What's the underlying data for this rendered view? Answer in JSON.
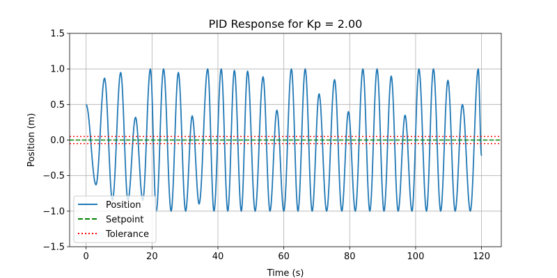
{
  "chart_data": {
    "type": "line",
    "title": "PID Response for Kp = 2.00",
    "xlabel": "Time (s)",
    "ylabel": "Position (m)",
    "xlim": [
      -5,
      126
    ],
    "ylim": [
      -1.5,
      1.5
    ],
    "x_ticks": [
      0,
      20,
      40,
      60,
      80,
      100,
      120
    ],
    "x_tick_labels": [
      "0",
      "20",
      "40",
      "60",
      "80",
      "100",
      "120"
    ],
    "y_ticks": [
      -1.5,
      -1.0,
      -0.5,
      0.0,
      0.5,
      1.0,
      1.5
    ],
    "y_tick_labels": [
      "−1.5",
      "−1.0",
      "−0.5",
      "0.0",
      "0.5",
      "1.0",
      "1.5"
    ],
    "grid": true,
    "legend_position": "lower-left",
    "series": [
      {
        "name": "Position",
        "color": "#1f77b4",
        "style": "solid",
        "x_range": [
          0,
          120
        ],
        "start_value": 0.5,
        "end_value": -0.22,
        "peaks": [
          [
            0,
            0.5
          ],
          [
            3,
            -0.63
          ],
          [
            5.6,
            0.87
          ],
          [
            8,
            -0.85
          ],
          [
            10.5,
            0.95
          ],
          [
            12.7,
            -0.85
          ],
          [
            15,
            0.32
          ],
          [
            17.2,
            -0.85
          ],
          [
            19.5,
            1.0
          ],
          [
            21.3,
            -1.0
          ],
          [
            23.5,
            1.0
          ],
          [
            25.8,
            -1.0
          ],
          [
            28,
            0.95
          ],
          [
            30.2,
            -1.0
          ],
          [
            32.2,
            0.34
          ],
          [
            34.3,
            -0.9
          ],
          [
            36.9,
            1.0
          ],
          [
            38.8,
            -1.0
          ],
          [
            41,
            1.0
          ],
          [
            43,
            -1.0
          ],
          [
            45,
            0.98
          ],
          [
            47.1,
            -1.0
          ],
          [
            49,
            0.97
          ],
          [
            51.3,
            -1.0
          ],
          [
            53.7,
            0.89
          ],
          [
            55.8,
            -1.0
          ],
          [
            57.9,
            0.42
          ],
          [
            60,
            -1.0
          ],
          [
            62.3,
            1.0
          ],
          [
            64.3,
            -1.0
          ],
          [
            66.5,
            1.0
          ],
          [
            68.6,
            -1.0
          ],
          [
            70.7,
            0.65
          ],
          [
            73,
            -1.0
          ],
          [
            75.4,
            0.85
          ],
          [
            77.6,
            -1.0
          ],
          [
            79.6,
            0.4
          ],
          [
            81.7,
            -1.0
          ],
          [
            84,
            1.0
          ],
          [
            86.1,
            -1.0
          ],
          [
            88.3,
            1.0
          ],
          [
            90.4,
            -1.0
          ],
          [
            92.6,
            0.9
          ],
          [
            94.7,
            -1.0
          ],
          [
            96.8,
            0.35
          ],
          [
            98.9,
            -1.0
          ],
          [
            101,
            1.0
          ],
          [
            103.3,
            -1.0
          ],
          [
            105.4,
            1.0
          ],
          [
            107.6,
            -1.0
          ],
          [
            109.8,
            0.84
          ],
          [
            112,
            -1.0
          ],
          [
            114.2,
            0.5
          ],
          [
            116.6,
            -1.0
          ],
          [
            119,
            1.0
          ],
          [
            120,
            -0.22
          ]
        ]
      },
      {
        "name": "Setpoint",
        "color": "#008000",
        "style": "dashed",
        "y": 0.0
      },
      {
        "name": "Tolerance",
        "color": "#ff0000",
        "style": "dotted",
        "y": [
          0.05,
          -0.05
        ]
      }
    ]
  }
}
